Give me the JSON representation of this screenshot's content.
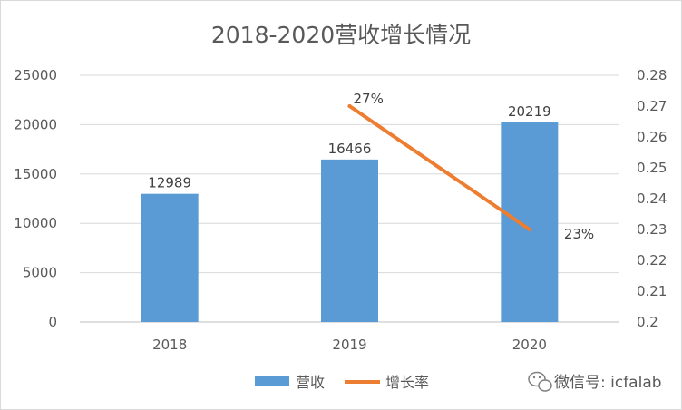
{
  "chart_data": {
    "type": "bar",
    "title": "2018-2020营收增长情况",
    "categories": [
      "2018",
      "2019",
      "2020"
    ],
    "series": [
      {
        "name": "营收",
        "type": "bar",
        "axis": "left",
        "values": [
          12989,
          16466,
          20219
        ],
        "labels": [
          "12989",
          "16466",
          "20219"
        ],
        "color": "#5b9bd5"
      },
      {
        "name": "增长率",
        "type": "line",
        "axis": "right",
        "x": [
          "2019",
          "2020"
        ],
        "values": [
          0.27,
          0.23
        ],
        "labels": [
          "27%",
          "23%"
        ],
        "color": "#ed7d31"
      }
    ],
    "y_left": {
      "lim": [
        0,
        25000
      ],
      "ticks": [
        "0",
        "5000",
        "10000",
        "15000",
        "20000",
        "25000"
      ]
    },
    "y_right": {
      "lim": [
        0.2,
        0.28
      ],
      "ticks": [
        "0.2",
        "0.21",
        "0.22",
        "0.23",
        "0.24",
        "0.25",
        "0.26",
        "0.27",
        "0.28"
      ]
    },
    "grid": true,
    "legend": "bottom"
  },
  "watermark": {
    "text": "微信号: icfalab",
    "icon": "wechat-icon"
  }
}
